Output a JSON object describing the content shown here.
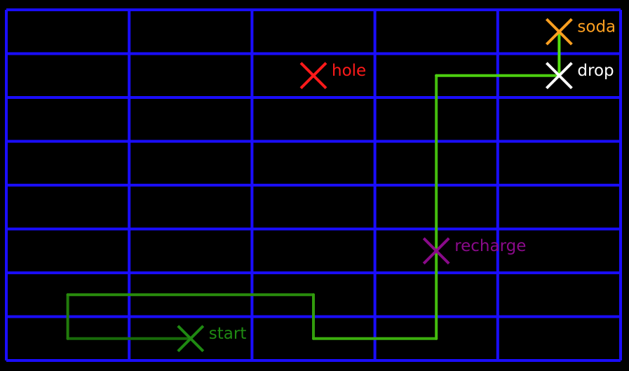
{
  "grid": {
    "columns": 5,
    "rows": 8,
    "line_color": "#1a0dff",
    "background": "#000000"
  },
  "markers": [
    {
      "id": "start",
      "label": "start",
      "color": "#1f8a12",
      "cell": [
        1.5,
        7.5
      ]
    },
    {
      "id": "hole",
      "label": "hole",
      "color": "#ff1a1a",
      "cell": [
        2.5,
        1.5
      ]
    },
    {
      "id": "recharge",
      "label": "recharge",
      "color": "#8a0a8a",
      "cell": [
        3.5,
        5.5
      ]
    },
    {
      "id": "soda",
      "label": "soda",
      "color": "#ffa020",
      "cell": [
        4.5,
        0.5
      ]
    },
    {
      "id": "drop",
      "label": "drop",
      "color": "#ffffff",
      "cell": [
        4.5,
        1.5
      ]
    }
  ],
  "path": {
    "color_start": "#186a0a",
    "color_end": "#55e010",
    "points": [
      [
        1.5,
        7.5
      ],
      [
        0.5,
        7.5
      ],
      [
        0.5,
        6.5
      ],
      [
        2.5,
        6.5
      ],
      [
        2.5,
        7.5
      ],
      [
        3.5,
        7.5
      ],
      [
        3.5,
        1.5
      ],
      [
        4.5,
        1.5
      ],
      [
        4.5,
        0.5
      ]
    ]
  }
}
